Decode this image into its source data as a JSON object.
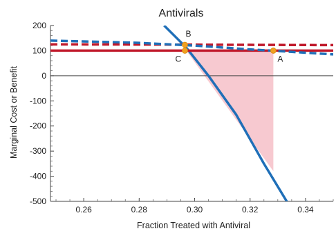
{
  "chart_data": {
    "type": "line",
    "title": "Antivirals",
    "xlabel": "Fraction Treated with Antiviral",
    "ylabel": "Marginal Cost or Benefit",
    "xlim": [
      0.248,
      0.35
    ],
    "ylim": [
      -500,
      200
    ],
    "x_ticks": [
      0.26,
      0.28,
      0.3,
      0.32,
      0.34
    ],
    "x_tick_labels": [
      "0.26",
      "0.28",
      "0.30",
      "0.32",
      "0.34"
    ],
    "y_ticks": [
      200,
      100,
      0,
      -100,
      -200,
      -300,
      -400,
      -500
    ],
    "y_tick_labels": [
      "200",
      "100",
      "0",
      "-100",
      "-200",
      "-300",
      "-400",
      "-500"
    ],
    "grid": false,
    "legend": "none",
    "series": [
      {
        "color": "#1f6fb8",
        "style": "solid",
        "x": [
          0.289,
          0.297,
          0.305,
          0.315,
          0.325,
          0.3335
        ],
        "y": [
          200,
          112,
          0,
          -155,
          -350,
          -505
        ]
      },
      {
        "color": "#c0182a",
        "style": "solid",
        "x": [
          0.248,
          0.35
        ],
        "y": [
          100,
          100
        ]
      },
      {
        "color": "#c0182a",
        "style": "dashed",
        "x": [
          0.248,
          0.29,
          0.32,
          0.35
        ],
        "y": [
          125,
          124,
          123,
          122
        ]
      },
      {
        "color": "#1f6fb8",
        "style": "dashed",
        "x": [
          0.248,
          0.28,
          0.3,
          0.32,
          0.335,
          0.35
        ],
        "y": [
          140,
          131,
          120,
          105,
          95,
          85
        ]
      }
    ],
    "shaded_region": {
      "color": "#f7c9d0",
      "x": [
        0.297,
        0.3284,
        0.3284
      ],
      "y": [
        100,
        100,
        -380
      ]
    },
    "points": [
      {
        "label": "B",
        "x": 0.2965,
        "y": 123,
        "color": "#f0a020"
      },
      {
        "label": "C",
        "x": 0.2965,
        "y": 100,
        "color": "#f0a020"
      },
      {
        "label": "A",
        "x": 0.3284,
        "y": 100,
        "color": "#f0a020"
      }
    ]
  }
}
